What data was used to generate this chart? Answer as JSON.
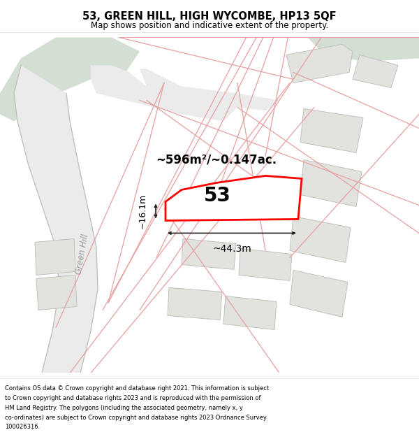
{
  "title": "53, GREEN HILL, HIGH WYCOMBE, HP13 5QF",
  "subtitle": "Map shows position and indicative extent of the property.",
  "footer": "Contains OS data © Crown copyright and database right 2021. This information is subject to Crown copyright and database rights 2023 and is reproduced with the permission of HM Land Registry. The polygons (including the associated geometry, namely x, y co-ordinates) are subject to Crown copyright and database rights 2023 Ordnance Survey 100026316.",
  "area_label": "~596m²/~0.147ac.",
  "width_label": "~44.3m",
  "height_label": "~16.1m",
  "plot_number": "53",
  "map_bg": "#f7f7f5",
  "plot_fill": "#ffffff",
  "plot_edge_color": "#ff0000",
  "road_fill": "#ebebeb",
  "other_plot_fill": "#e2e2df",
  "other_plot_edge": "#d4a0a0",
  "pink_line_color": "#e8a0a0",
  "green_area_color": "#d4dfd4",
  "road_edge_color": "#c0c0bc"
}
